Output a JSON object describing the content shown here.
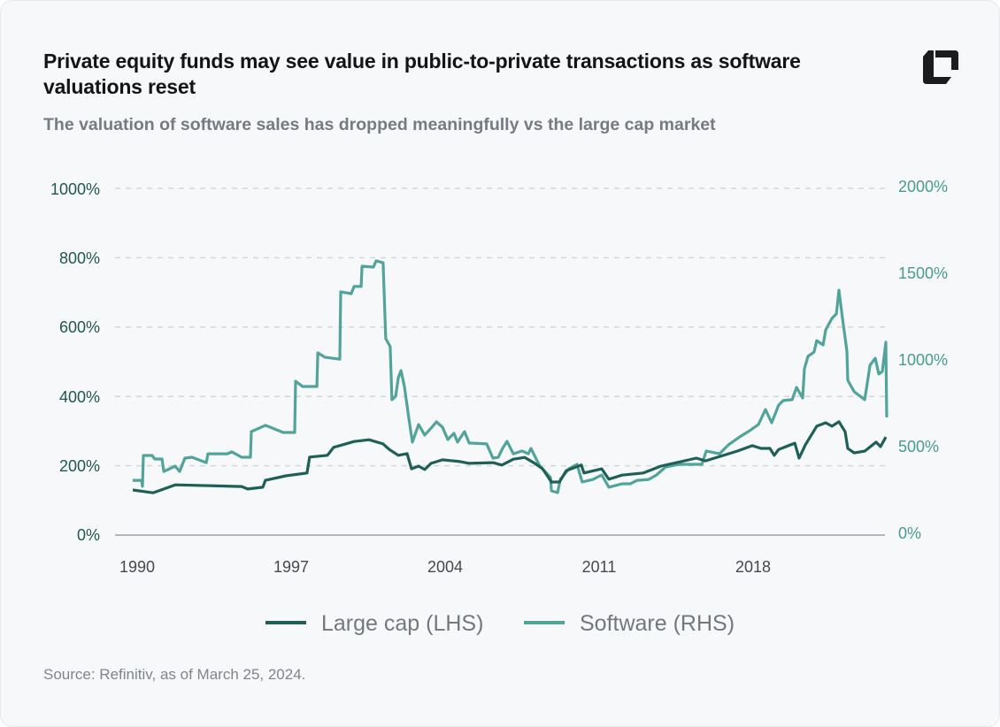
{
  "title": "Private equity funds may see value in public-to-private transactions as software valuations reset",
  "subtitle": "The valuation of software sales has dropped meaningfully vs the large cap market",
  "source": "Source: Refinitiv, as of March 25, 2024.",
  "logo": "brand-logo-icon",
  "colors": {
    "large_cap": "#1f5f57",
    "software": "#52a39a",
    "grid": "#d3d6da",
    "axis": "#b4b7bc"
  },
  "chart_data": {
    "type": "line",
    "title": "Private equity funds may see value in public-to-private transactions as software valuations reset",
    "subtitle": "The valuation of software sales has dropped meaningfully vs the large cap market",
    "x_ticks": [
      "1990",
      "1997",
      "2004",
      "2011",
      "2018"
    ],
    "xlim": [
      1989.8,
      2024.1
    ],
    "y_left": {
      "ticks": [
        "0%",
        "200%",
        "400%",
        "600%",
        "800%",
        "1000%"
      ],
      "range": [
        0,
        1000
      ]
    },
    "y_right": {
      "ticks": [
        "0%",
        "500%",
        "1000%",
        "1500%",
        "2000%"
      ],
      "range": [
        0,
        2000
      ]
    },
    "grid": "horizontal dashed",
    "legend": "bottom",
    "series": [
      {
        "name": "Large cap (LHS)",
        "axis": "left",
        "color": "#1f5f57",
        "x": [
          1989.8,
          1990.72,
          1991.73,
          1994.75,
          1995.03,
          1995.71,
          1995.83,
          1996.76,
          1997.72,
          1997.84,
          1998.65,
          1998.93,
          1999.86,
          2000.54,
          2001.18,
          2001.46,
          2001.87,
          2002.27,
          2002.47,
          2002.79,
          2003.07,
          2003.36,
          2003.88,
          2004.68,
          2005.09,
          2006.17,
          2006.58,
          2007.1,
          2007.62,
          2008.02,
          2008.43,
          2008.83,
          2009.19,
          2009.51,
          2010.19,
          2010.31,
          2011.12,
          2011.44,
          2012.04,
          2013.01,
          2013.81,
          2015.42,
          2015.83,
          2017.27,
          2017.96,
          2018.36,
          2018.76,
          2018.96,
          2019.16,
          2019.89,
          2020.09,
          2020.37,
          2020.89,
          2021.3,
          2021.58,
          2021.9,
          2022.18,
          2022.3,
          2022.59,
          2023.07,
          2023.59,
          2023.79,
          2024.03
        ],
        "y": [
          130,
          122,
          145,
          140,
          133,
          138,
          158,
          171,
          179,
          225,
          230,
          253,
          270,
          275,
          263,
          247,
          230,
          235,
          191,
          199,
          189,
          207,
          217,
          212,
          207,
          209,
          202,
          219,
          224,
          209,
          191,
          153,
          153,
          186,
          202,
          179,
          191,
          161,
          173,
          179,
          199,
          222,
          214,
          242,
          258,
          250,
          250,
          230,
          247,
          265,
          222,
          260,
          314,
          324,
          314,
          327,
          298,
          250,
          237,
          242,
          268,
          255,
          283
        ]
      },
      {
        "name": "Software (RHS)",
        "axis": "right",
        "color": "#52a39a",
        "x": [
          1989.8,
          1990.2,
          1990.24,
          1990.28,
          1990.68,
          1990.8,
          1991.13,
          1991.21,
          1991.73,
          1991.93,
          1992.17,
          1992.49,
          1993.14,
          1993.22,
          1994.1,
          1994.3,
          1994.75,
          1995.15,
          1995.19,
          1995.83,
          1996.64,
          1997.16,
          1997.2,
          1997.52,
          1998.17,
          1998.21,
          1998.53,
          1999.21,
          1999.25,
          1999.73,
          1999.86,
          2000.18,
          2000.22,
          2000.74,
          2000.86,
          2001.18,
          2001.3,
          2001.5,
          2001.58,
          2001.75,
          2001.87,
          2001.99,
          2002.15,
          2002.35,
          2002.51,
          2002.79,
          2003.07,
          2003.36,
          2003.6,
          2003.88,
          2004.12,
          2004.4,
          2004.56,
          2004.88,
          2005.09,
          2005.89,
          2006.17,
          2006.41,
          2006.61,
          2006.81,
          2007.1,
          2007.5,
          2007.78,
          2007.9,
          2008.02,
          2008.3,
          2008.79,
          2008.83,
          2009.11,
          2009.23,
          2009.63,
          2009.99,
          2010.23,
          2010.72,
          2011.12,
          2011.44,
          2012.04,
          2012.41,
          2012.73,
          2013.25,
          2013.61,
          2014.02,
          2014.62,
          2015.67,
          2015.87,
          2016.47,
          2016.87,
          2017.44,
          2017.84,
          2018.24,
          2018.56,
          2018.84,
          2019.16,
          2019.37,
          2019.77,
          2019.97,
          2020.25,
          2020.33,
          2020.49,
          2020.77,
          2020.89,
          2021.18,
          2021.3,
          2021.58,
          2021.78,
          2021.9,
          2022.06,
          2022.26,
          2022.3,
          2022.59,
          2023.07,
          2023.19,
          2023.31,
          2023.55,
          2023.71,
          2023.87,
          2024.03,
          2024.07
        ],
        "y": [
          316,
          316,
          281,
          459,
          459,
          439,
          439,
          367,
          398,
          367,
          444,
          449,
          418,
          469,
          469,
          480,
          449,
          449,
          597,
          633,
          592,
          592,
          888,
          857,
          857,
          1051,
          1026,
          1015,
          1403,
          1393,
          1434,
          1434,
          1551,
          1546,
          1582,
          1571,
          1133,
          1087,
          781,
          801,
          908,
          949,
          857,
          673,
          536,
          638,
          577,
          617,
          653,
          622,
          551,
          587,
          536,
          597,
          531,
          526,
          444,
          449,
          500,
          541,
          469,
          485,
          469,
          500,
          469,
          398,
          332,
          255,
          245,
          321,
          383,
          408,
          306,
          321,
          347,
          276,
          296,
          296,
          316,
          321,
          347,
          393,
          408,
          408,
          485,
          469,
          520,
          571,
          602,
          638,
          724,
          648,
          750,
          776,
          781,
          852,
          791,
          959,
          1031,
          1056,
          1122,
          1097,
          1184,
          1250,
          1276,
          1413,
          1250,
          1061,
          893,
          827,
          781,
          878,
          980,
          1020,
          929,
          944,
          1112,
          679
        ]
      }
    ]
  }
}
